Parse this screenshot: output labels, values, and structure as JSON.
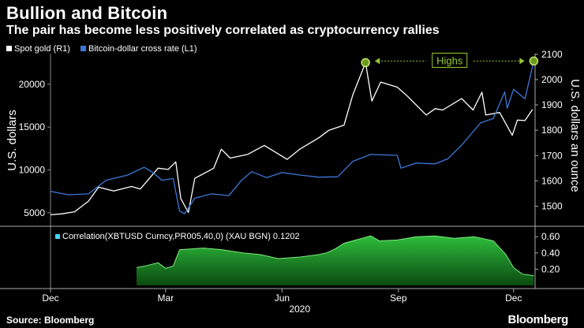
{
  "title": "Bullion and Bitcoin",
  "subtitle": "The pair has become less positively correlated as cryptocurrency rallies",
  "source": "Source: Bloomberg",
  "brand": "Bloomberg",
  "chart_data": [
    {
      "type": "line",
      "legend": [
        {
          "label": "Spot gold (R1)",
          "color": "#ffffff"
        },
        {
          "label": "Bitcoin-dollar cross rate (L1)",
          "color": "#3c78d8"
        }
      ],
      "ylabel_left": "U.S. dollars",
      "ylabel_right": "U.S. dollars an ounce",
      "ylim_left": [
        3700,
        23200
      ],
      "ylim_right": [
        1430,
        2090
      ],
      "yticks_left": [
        "5000",
        "10000",
        "15000",
        "20000"
      ],
      "yticks_right": [
        "1500",
        "1600",
        "1700",
        "1800",
        "1900",
        "2000",
        "2100"
      ],
      "annotation": "Highs",
      "series": [
        {
          "name": "Spot gold (R1)",
          "axis": "right",
          "color": "#ffffff",
          "points": [
            [
              "2019-12-01",
              1466
            ],
            [
              "2019-12-10",
              1470
            ],
            [
              "2019-12-20",
              1478
            ],
            [
              "2019-12-31",
              1520
            ],
            [
              "2020-01-08",
              1575
            ],
            [
              "2020-01-20",
              1560
            ],
            [
              "2020-02-03",
              1578
            ],
            [
              "2020-02-10",
              1568
            ],
            [
              "2020-02-24",
              1650
            ],
            [
              "2020-03-03",
              1645
            ],
            [
              "2020-03-09",
              1675
            ],
            [
              "2020-03-13",
              1530
            ],
            [
              "2020-03-19",
              1475
            ],
            [
              "2020-03-24",
              1610
            ],
            [
              "2020-04-08",
              1650
            ],
            [
              "2020-04-14",
              1725
            ],
            [
              "2020-04-21",
              1690
            ],
            [
              "2020-05-05",
              1705
            ],
            [
              "2020-05-18",
              1740
            ],
            [
              "2020-06-05",
              1685
            ],
            [
              "2020-06-15",
              1725
            ],
            [
              "2020-06-30",
              1770
            ],
            [
              "2020-07-08",
              1800
            ],
            [
              "2020-07-20",
              1820
            ],
            [
              "2020-07-27",
              1940
            ],
            [
              "2020-08-06",
              2067
            ],
            [
              "2020-08-11",
              1915
            ],
            [
              "2020-08-18",
              1990
            ],
            [
              "2020-08-31",
              1970
            ],
            [
              "2020-09-08",
              1935
            ],
            [
              "2020-09-23",
              1860
            ],
            [
              "2020-09-30",
              1885
            ],
            [
              "2020-10-06",
              1880
            ],
            [
              "2020-10-21",
              1925
            ],
            [
              "2020-10-30",
              1880
            ],
            [
              "2020-11-06",
              1950
            ],
            [
              "2020-11-09",
              1860
            ],
            [
              "2020-11-20",
              1870
            ],
            [
              "2020-11-30",
              1780
            ],
            [
              "2020-12-04",
              1840
            ],
            [
              "2020-12-10",
              1838
            ],
            [
              "2020-12-16",
              1882
            ]
          ]
        },
        {
          "name": "Bitcoin-dollar cross rate (L1)",
          "axis": "left",
          "color": "#3c78d8",
          "points": [
            [
              "2019-12-01",
              7500
            ],
            [
              "2019-12-15",
              7100
            ],
            [
              "2019-12-31",
              7200
            ],
            [
              "2020-01-14",
              8800
            ],
            [
              "2020-01-31",
              9400
            ],
            [
              "2020-02-13",
              10300
            ],
            [
              "2020-02-20",
              9700
            ],
            [
              "2020-02-27",
              8800
            ],
            [
              "2020-03-07",
              9000
            ],
            [
              "2020-03-12",
              5200
            ],
            [
              "2020-03-16",
              4900
            ],
            [
              "2020-03-24",
              6700
            ],
            [
              "2020-04-06",
              7200
            ],
            [
              "2020-04-20",
              7000
            ],
            [
              "2020-04-30",
              8800
            ],
            [
              "2020-05-08",
              9800
            ],
            [
              "2020-05-20",
              9100
            ],
            [
              "2020-06-01",
              9700
            ],
            [
              "2020-06-15",
              9400
            ],
            [
              "2020-06-30",
              9150
            ],
            [
              "2020-07-15",
              9200
            ],
            [
              "2020-07-27",
              11000
            ],
            [
              "2020-08-10",
              11800
            ],
            [
              "2020-08-31",
              11700
            ],
            [
              "2020-09-03",
              10200
            ],
            [
              "2020-09-15",
              10800
            ],
            [
              "2020-09-30",
              10700
            ],
            [
              "2020-10-10",
              11300
            ],
            [
              "2020-10-21",
              12900
            ],
            [
              "2020-11-05",
              15500
            ],
            [
              "2020-11-15",
              16000
            ],
            [
              "2020-11-24",
              19100
            ],
            [
              "2020-11-26",
              17200
            ],
            [
              "2020-12-01",
              19400
            ],
            [
              "2020-12-10",
              18300
            ],
            [
              "2020-12-17",
              22700
            ]
          ]
        }
      ]
    },
    {
      "type": "area",
      "label": "Correlation(XBTUSD Curncy,PR005,40,0) (XAU BGN) 0.1202",
      "color": "#2ebd3c",
      "ylim": [
        0,
        0.68
      ],
      "yticks": [
        "0.20",
        "0.40",
        "0.60"
      ],
      "xticks": [
        "Dec",
        "Mar",
        "Jun",
        "Sep",
        "Dec"
      ],
      "year_label": "2020",
      "series": [
        {
          "points": [
            [
              "2020-02-07",
              0.22
            ],
            [
              "2020-02-14",
              0.24
            ],
            [
              "2020-02-24",
              0.28
            ],
            [
              "2020-03-01",
              0.21
            ],
            [
              "2020-03-07",
              0.24
            ],
            [
              "2020-03-12",
              0.44
            ],
            [
              "2020-03-31",
              0.46
            ],
            [
              "2020-04-15",
              0.44
            ],
            [
              "2020-05-01",
              0.4
            ],
            [
              "2020-05-15",
              0.38
            ],
            [
              "2020-05-29",
              0.33
            ],
            [
              "2020-06-15",
              0.35
            ],
            [
              "2020-06-30",
              0.38
            ],
            [
              "2020-07-06",
              0.4
            ],
            [
              "2020-07-13",
              0.45
            ],
            [
              "2020-07-20",
              0.52
            ],
            [
              "2020-07-27",
              0.55
            ],
            [
              "2020-08-03",
              0.58
            ],
            [
              "2020-08-10",
              0.61
            ],
            [
              "2020-08-17",
              0.55
            ],
            [
              "2020-08-31",
              0.56
            ],
            [
              "2020-09-15",
              0.6
            ],
            [
              "2020-09-30",
              0.61
            ],
            [
              "2020-10-15",
              0.58
            ],
            [
              "2020-10-31",
              0.6
            ],
            [
              "2020-11-15",
              0.55
            ],
            [
              "2020-11-25",
              0.38
            ],
            [
              "2020-12-01",
              0.22
            ],
            [
              "2020-12-08",
              0.14
            ],
            [
              "2020-12-17",
              0.12
            ]
          ]
        }
      ]
    }
  ]
}
